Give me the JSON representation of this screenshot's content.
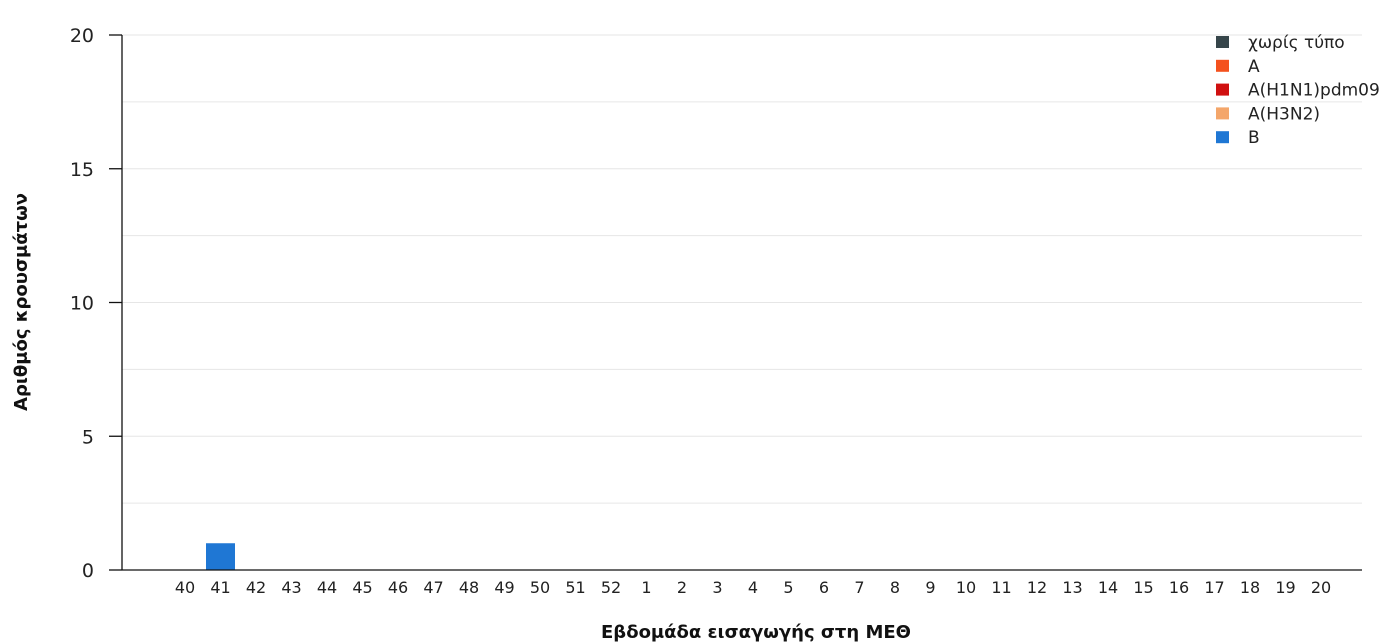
{
  "chart_data": {
    "type": "bar",
    "stacked": true,
    "xlabel": "Εβδομάδα εισαγωγής στη ΜΕΘ",
    "ylabel": "Αριθμός κρουσμάτων",
    "ylim": [
      0,
      20
    ],
    "yticks": [
      "0",
      "5",
      "10",
      "15",
      "20"
    ],
    "grid": true,
    "legend_position": "top-right",
    "categories": [
      "40",
      "41",
      "42",
      "43",
      "44",
      "45",
      "46",
      "47",
      "48",
      "49",
      "50",
      "51",
      "52",
      "1",
      "2",
      "3",
      "4",
      "5",
      "6",
      "7",
      "8",
      "9",
      "10",
      "11",
      "12",
      "13",
      "14",
      "15",
      "16",
      "17",
      "18",
      "19",
      "20"
    ],
    "series": [
      {
        "name": "χωρίς τύπο",
        "color": "#36454a",
        "values": [
          0,
          0,
          0,
          0,
          0,
          0,
          0,
          0,
          0,
          0,
          0,
          0,
          0,
          0,
          0,
          0,
          0,
          0,
          0,
          0,
          0,
          0,
          0,
          0,
          0,
          0,
          0,
          0,
          0,
          0,
          0,
          0,
          0
        ]
      },
      {
        "name": "A",
        "color": "#f4511e",
        "values": [
          0,
          0,
          0,
          0,
          0,
          0,
          0,
          0,
          0,
          0,
          0,
          0,
          0,
          0,
          0,
          0,
          0,
          0,
          0,
          0,
          0,
          0,
          0,
          0,
          0,
          0,
          0,
          0,
          0,
          0,
          0,
          0,
          0
        ]
      },
      {
        "name": "A(H1N1)pdm09",
        "color": "#d01010",
        "values": [
          0,
          0,
          0,
          0,
          0,
          0,
          0,
          0,
          0,
          0,
          0,
          0,
          0,
          0,
          0,
          0,
          0,
          0,
          0,
          0,
          0,
          0,
          0,
          0,
          0,
          0,
          0,
          0,
          0,
          0,
          0,
          0,
          0
        ]
      },
      {
        "name": "A(H3N2)",
        "color": "#f4a66a",
        "values": [
          0,
          0,
          0,
          0,
          0,
          0,
          0,
          0,
          0,
          0,
          0,
          0,
          0,
          0,
          0,
          0,
          0,
          0,
          0,
          0,
          0,
          0,
          0,
          0,
          0,
          0,
          0,
          0,
          0,
          0,
          0,
          0,
          0
        ]
      },
      {
        "name": "B",
        "color": "#1f77d4",
        "values": [
          0,
          1,
          0,
          0,
          0,
          0,
          0,
          0,
          0,
          0,
          0,
          0,
          0,
          0,
          0,
          0,
          0,
          0,
          0,
          0,
          0,
          0,
          0,
          0,
          0,
          0,
          0,
          0,
          0,
          0,
          0,
          0,
          0
        ]
      }
    ]
  }
}
